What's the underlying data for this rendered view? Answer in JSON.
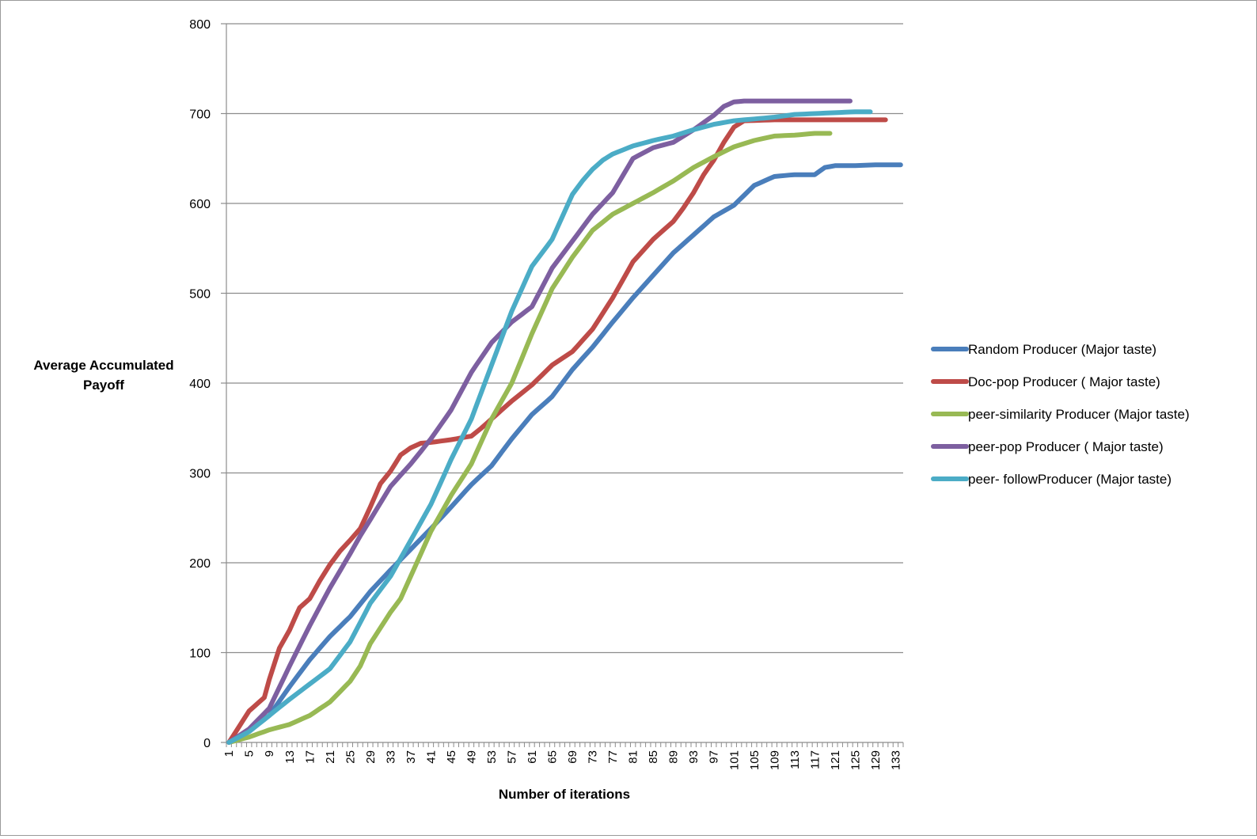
{
  "chart_data": {
    "type": "line",
    "title": "",
    "xlabel": "Number of iterations",
    "ylabel": "Average Accumulated Payoff",
    "ylim": [
      0,
      800
    ],
    "yticks": [
      0,
      100,
      200,
      300,
      400,
      500,
      600,
      700,
      800
    ],
    "x_tick_labels": [
      "1",
      "5",
      "9",
      "13",
      "17",
      "21",
      "25",
      "29",
      "33",
      "37",
      "41",
      "45",
      "49",
      "53",
      "57",
      "61",
      "65",
      "69",
      "73",
      "77",
      "81",
      "85",
      "89",
      "93",
      "97",
      "101",
      "105",
      "109",
      "113",
      "117",
      "121",
      "125",
      "129",
      "133"
    ],
    "x_range": [
      1,
      134
    ],
    "grid": "horizontal",
    "legend_position": "right",
    "series": [
      {
        "name": "Random Producer (Major taste)",
        "color": "#4a7ebb",
        "points": [
          [
            1,
            0
          ],
          [
            5,
            13
          ],
          [
            9,
            30
          ],
          [
            13,
            62
          ],
          [
            17,
            92
          ],
          [
            21,
            118
          ],
          [
            25,
            140
          ],
          [
            29,
            168
          ],
          [
            33,
            192
          ],
          [
            37,
            215
          ],
          [
            41,
            238
          ],
          [
            45,
            262
          ],
          [
            49,
            287
          ],
          [
            53,
            308
          ],
          [
            57,
            338
          ],
          [
            61,
            365
          ],
          [
            65,
            385
          ],
          [
            69,
            415
          ],
          [
            73,
            440
          ],
          [
            77,
            468
          ],
          [
            81,
            495
          ],
          [
            85,
            520
          ],
          [
            89,
            545
          ],
          [
            93,
            565
          ],
          [
            97,
            585
          ],
          [
            101,
            598
          ],
          [
            105,
            620
          ],
          [
            109,
            630
          ],
          [
            113,
            632
          ],
          [
            117,
            632
          ],
          [
            119,
            640
          ],
          [
            121,
            642
          ],
          [
            125,
            642
          ],
          [
            129,
            643
          ],
          [
            134,
            643
          ]
        ]
      },
      {
        "name": "Doc-pop Producer ( Major taste)",
        "color": "#be4b48",
        "points": [
          [
            1,
            0
          ],
          [
            5,
            35
          ],
          [
            8,
            50
          ],
          [
            9,
            70
          ],
          [
            11,
            105
          ],
          [
            13,
            125
          ],
          [
            15,
            150
          ],
          [
            17,
            160
          ],
          [
            19,
            180
          ],
          [
            21,
            198
          ],
          [
            23,
            213
          ],
          [
            25,
            225
          ],
          [
            27,
            238
          ],
          [
            29,
            262
          ],
          [
            31,
            288
          ],
          [
            33,
            302
          ],
          [
            35,
            320
          ],
          [
            37,
            328
          ],
          [
            39,
            333
          ],
          [
            41,
            334
          ],
          [
            45,
            337
          ],
          [
            49,
            341
          ],
          [
            51,
            350
          ],
          [
            53,
            360
          ],
          [
            57,
            380
          ],
          [
            61,
            398
          ],
          [
            65,
            420
          ],
          [
            69,
            435
          ],
          [
            73,
            460
          ],
          [
            77,
            495
          ],
          [
            81,
            535
          ],
          [
            85,
            560
          ],
          [
            89,
            580
          ],
          [
            91,
            595
          ],
          [
            93,
            612
          ],
          [
            95,
            632
          ],
          [
            97,
            648
          ],
          [
            99,
            668
          ],
          [
            101,
            685
          ],
          [
            103,
            692
          ],
          [
            109,
            693
          ],
          [
            121,
            693
          ],
          [
            129,
            693
          ],
          [
            131,
            693
          ]
        ]
      },
      {
        "name": "peer-similarity Producer (Major taste)",
        "color": "#98b954",
        "points": [
          [
            1,
            0
          ],
          [
            5,
            6
          ],
          [
            9,
            14
          ],
          [
            13,
            20
          ],
          [
            17,
            30
          ],
          [
            21,
            45
          ],
          [
            25,
            68
          ],
          [
            27,
            85
          ],
          [
            29,
            110
          ],
          [
            33,
            145
          ],
          [
            35,
            160
          ],
          [
            37,
            185
          ],
          [
            41,
            235
          ],
          [
            45,
            275
          ],
          [
            49,
            310
          ],
          [
            53,
            360
          ],
          [
            57,
            400
          ],
          [
            61,
            455
          ],
          [
            65,
            505
          ],
          [
            69,
            540
          ],
          [
            73,
            570
          ],
          [
            77,
            588
          ],
          [
            81,
            600
          ],
          [
            85,
            612
          ],
          [
            89,
            625
          ],
          [
            93,
            640
          ],
          [
            97,
            652
          ],
          [
            101,
            663
          ],
          [
            105,
            670
          ],
          [
            109,
            675
          ],
          [
            113,
            676
          ],
          [
            117,
            678
          ],
          [
            120,
            678
          ]
        ]
      },
      {
        "name": "peer-pop Producer ( Major taste)",
        "color": "#7d5fa0",
        "points": [
          [
            1,
            0
          ],
          [
            5,
            15
          ],
          [
            9,
            38
          ],
          [
            13,
            85
          ],
          [
            17,
            130
          ],
          [
            21,
            172
          ],
          [
            25,
            210
          ],
          [
            27,
            230
          ],
          [
            29,
            248
          ],
          [
            33,
            285
          ],
          [
            37,
            310
          ],
          [
            41,
            338
          ],
          [
            45,
            370
          ],
          [
            49,
            412
          ],
          [
            53,
            445
          ],
          [
            57,
            468
          ],
          [
            61,
            485
          ],
          [
            65,
            528
          ],
          [
            69,
            558
          ],
          [
            73,
            588
          ],
          [
            77,
            612
          ],
          [
            81,
            650
          ],
          [
            85,
            662
          ],
          [
            89,
            668
          ],
          [
            93,
            682
          ],
          [
            97,
            698
          ],
          [
            99,
            708
          ],
          [
            101,
            713
          ],
          [
            103,
            714
          ],
          [
            110,
            714
          ],
          [
            115,
            714
          ],
          [
            124,
            714
          ]
        ]
      },
      {
        "name": "peer- followProducer (Major taste)",
        "color": "#4bacc6",
        "points": [
          [
            1,
            0
          ],
          [
            5,
            12
          ],
          [
            9,
            30
          ],
          [
            13,
            48
          ],
          [
            17,
            65
          ],
          [
            21,
            82
          ],
          [
            25,
            112
          ],
          [
            29,
            155
          ],
          [
            33,
            185
          ],
          [
            37,
            225
          ],
          [
            41,
            265
          ],
          [
            43,
            290
          ],
          [
            45,
            315
          ],
          [
            49,
            360
          ],
          [
            53,
            420
          ],
          [
            57,
            480
          ],
          [
            61,
            530
          ],
          [
            65,
            560
          ],
          [
            67,
            585
          ],
          [
            69,
            610
          ],
          [
            71,
            625
          ],
          [
            73,
            638
          ],
          [
            75,
            648
          ],
          [
            77,
            655
          ],
          [
            81,
            664
          ],
          [
            85,
            670
          ],
          [
            89,
            675
          ],
          [
            93,
            682
          ],
          [
            97,
            688
          ],
          [
            101,
            692
          ],
          [
            105,
            694
          ],
          [
            109,
            696
          ],
          [
            113,
            699
          ],
          [
            117,
            700
          ],
          [
            121,
            701
          ],
          [
            125,
            702
          ],
          [
            128,
            702
          ]
        ]
      }
    ]
  }
}
